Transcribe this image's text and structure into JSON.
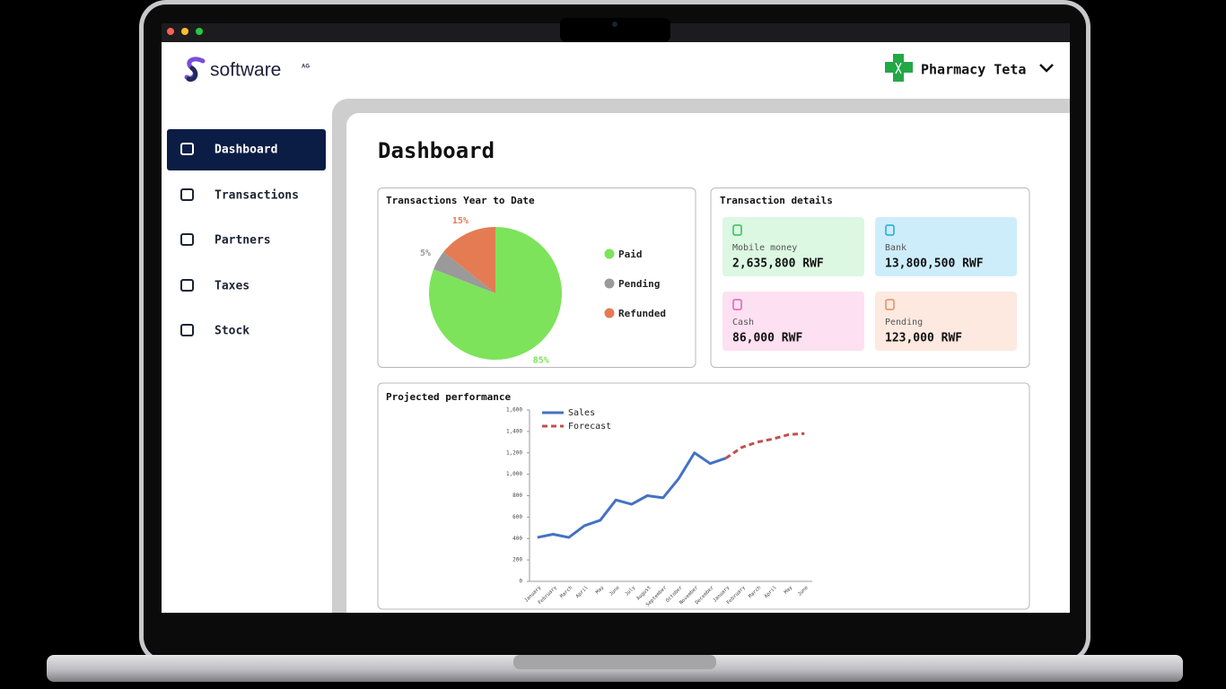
{
  "header": {
    "logo": "software",
    "logo_suffix": "AG",
    "account": "Pharmacy Teta"
  },
  "sidebar": {
    "items": [
      "Dashboard",
      "Transactions",
      "Partners",
      "Taxes",
      "Stock"
    ]
  },
  "page_title": "Dashboard",
  "transaction_details": {
    "title": "Transaction details",
    "cards": [
      {
        "label": "Mobile money",
        "amount": "2,635,800 RWF"
      },
      {
        "label": "Bank",
        "amount": "13,800,500 RWF"
      },
      {
        "label": "Cash",
        "amount": "86,000 RWF"
      },
      {
        "label": "Pending",
        "amount": "123,000 RWF"
      }
    ]
  },
  "chart_data": [
    {
      "type": "pie",
      "title": "Transactions Year to Date",
      "categories": [
        "Paid",
        "Pending",
        "Refunded"
      ],
      "values": [
        85,
        5,
        15
      ],
      "value_labels": [
        "85%",
        "5%",
        "15%"
      ],
      "colors": [
        "#7de35a",
        "#9a9a9a",
        "#e57b53"
      ]
    },
    {
      "type": "line",
      "title": "Projected performance",
      "categories": [
        "January",
        "February",
        "March",
        "April",
        "May",
        "June",
        "July",
        "August",
        "September",
        "October",
        "November",
        "December",
        "January",
        "February",
        "March",
        "April",
        "May",
        "June"
      ],
      "series": [
        {
          "name": "Sales",
          "color": "#4472c4",
          "values": [
            410,
            440,
            410,
            520,
            570,
            760,
            720,
            800,
            780,
            960,
            1200,
            1100,
            1150,
            null,
            null,
            null,
            null,
            null
          ]
        },
        {
          "name": "Forecast",
          "color": "#c0504d",
          "dashed": true,
          "values": [
            null,
            null,
            null,
            null,
            null,
            null,
            null,
            null,
            null,
            null,
            null,
            null,
            1150,
            1250,
            1300,
            1330,
            1370,
            1380
          ]
        }
      ],
      "ylim": [
        0,
        1600
      ],
      "yticks": [
        0,
        200,
        400,
        600,
        800,
        {
          "value": 1000,
          "label": "1,000"
        },
        {
          "value": 1200,
          "label": "1,200"
        },
        {
          "value": 1400,
          "label": "1,400"
        },
        {
          "value": 1600,
          "label": "1,600"
        }
      ]
    }
  ]
}
